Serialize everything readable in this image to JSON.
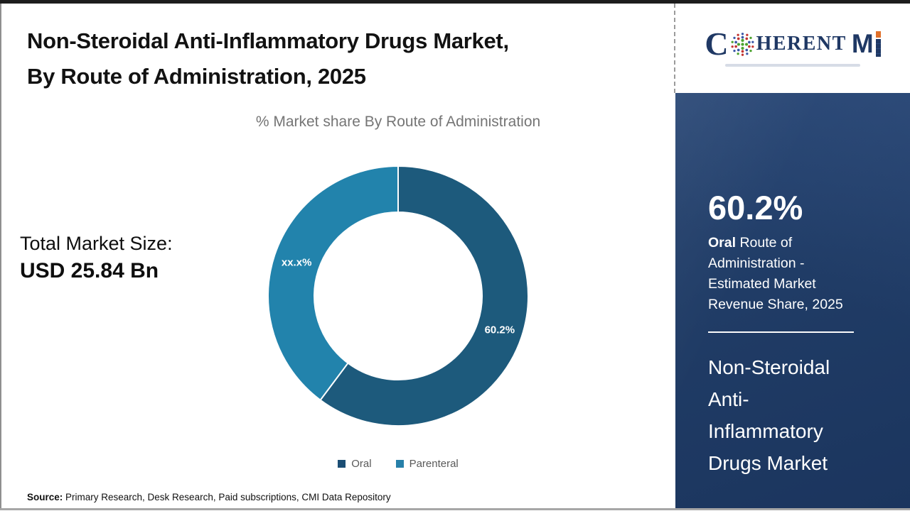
{
  "header": {
    "title_lines": [
      "Non-Steroidal Anti-Inflammatory Drugs Market,",
      "By Route of Administration, 2025"
    ],
    "subtitle": "% Market share By Route of Administration"
  },
  "logo": {
    "text_c": "C",
    "text_rest": "HERENT",
    "text_m": "M",
    "globe_icon": "dotted-globe",
    "navy": "#1f3864",
    "orange": "#e0702a",
    "dot_colors": [
      "#3a57a7",
      "#c23431",
      "#4ca32f"
    ]
  },
  "stats": {
    "label": "Total Market Size:",
    "value": "USD 25.84 Bn"
  },
  "chart_data": {
    "type": "pie",
    "subtype": "donut",
    "title": "% Market share By Route of Administration",
    "categories": [
      "Oral",
      "Parenteral"
    ],
    "values": [
      60.2,
      39.8
    ],
    "labels": [
      "60.2%",
      "xx.x%"
    ],
    "colors": [
      "#1d5a7c",
      "#2283ac"
    ],
    "legend_colors": [
      "#1b4e74",
      "#2780a9"
    ],
    "start_angle_deg": 0,
    "direction": "clockwise",
    "inner_radius_ratio": 0.645,
    "legend_position": "bottom"
  },
  "sidebar": {
    "stat_value": "60.2%",
    "stat_label_bold": "Oral",
    "stat_label_rest": " Route of Administration - Estimated Market Revenue Share, 2025",
    "market_name": "Non-Steroidal Anti-Inflammatory Drugs Market"
  },
  "source": {
    "label": "Source:",
    "text": " Primary Research, Desk Research, Paid subscriptions, CMI Data Repository"
  }
}
